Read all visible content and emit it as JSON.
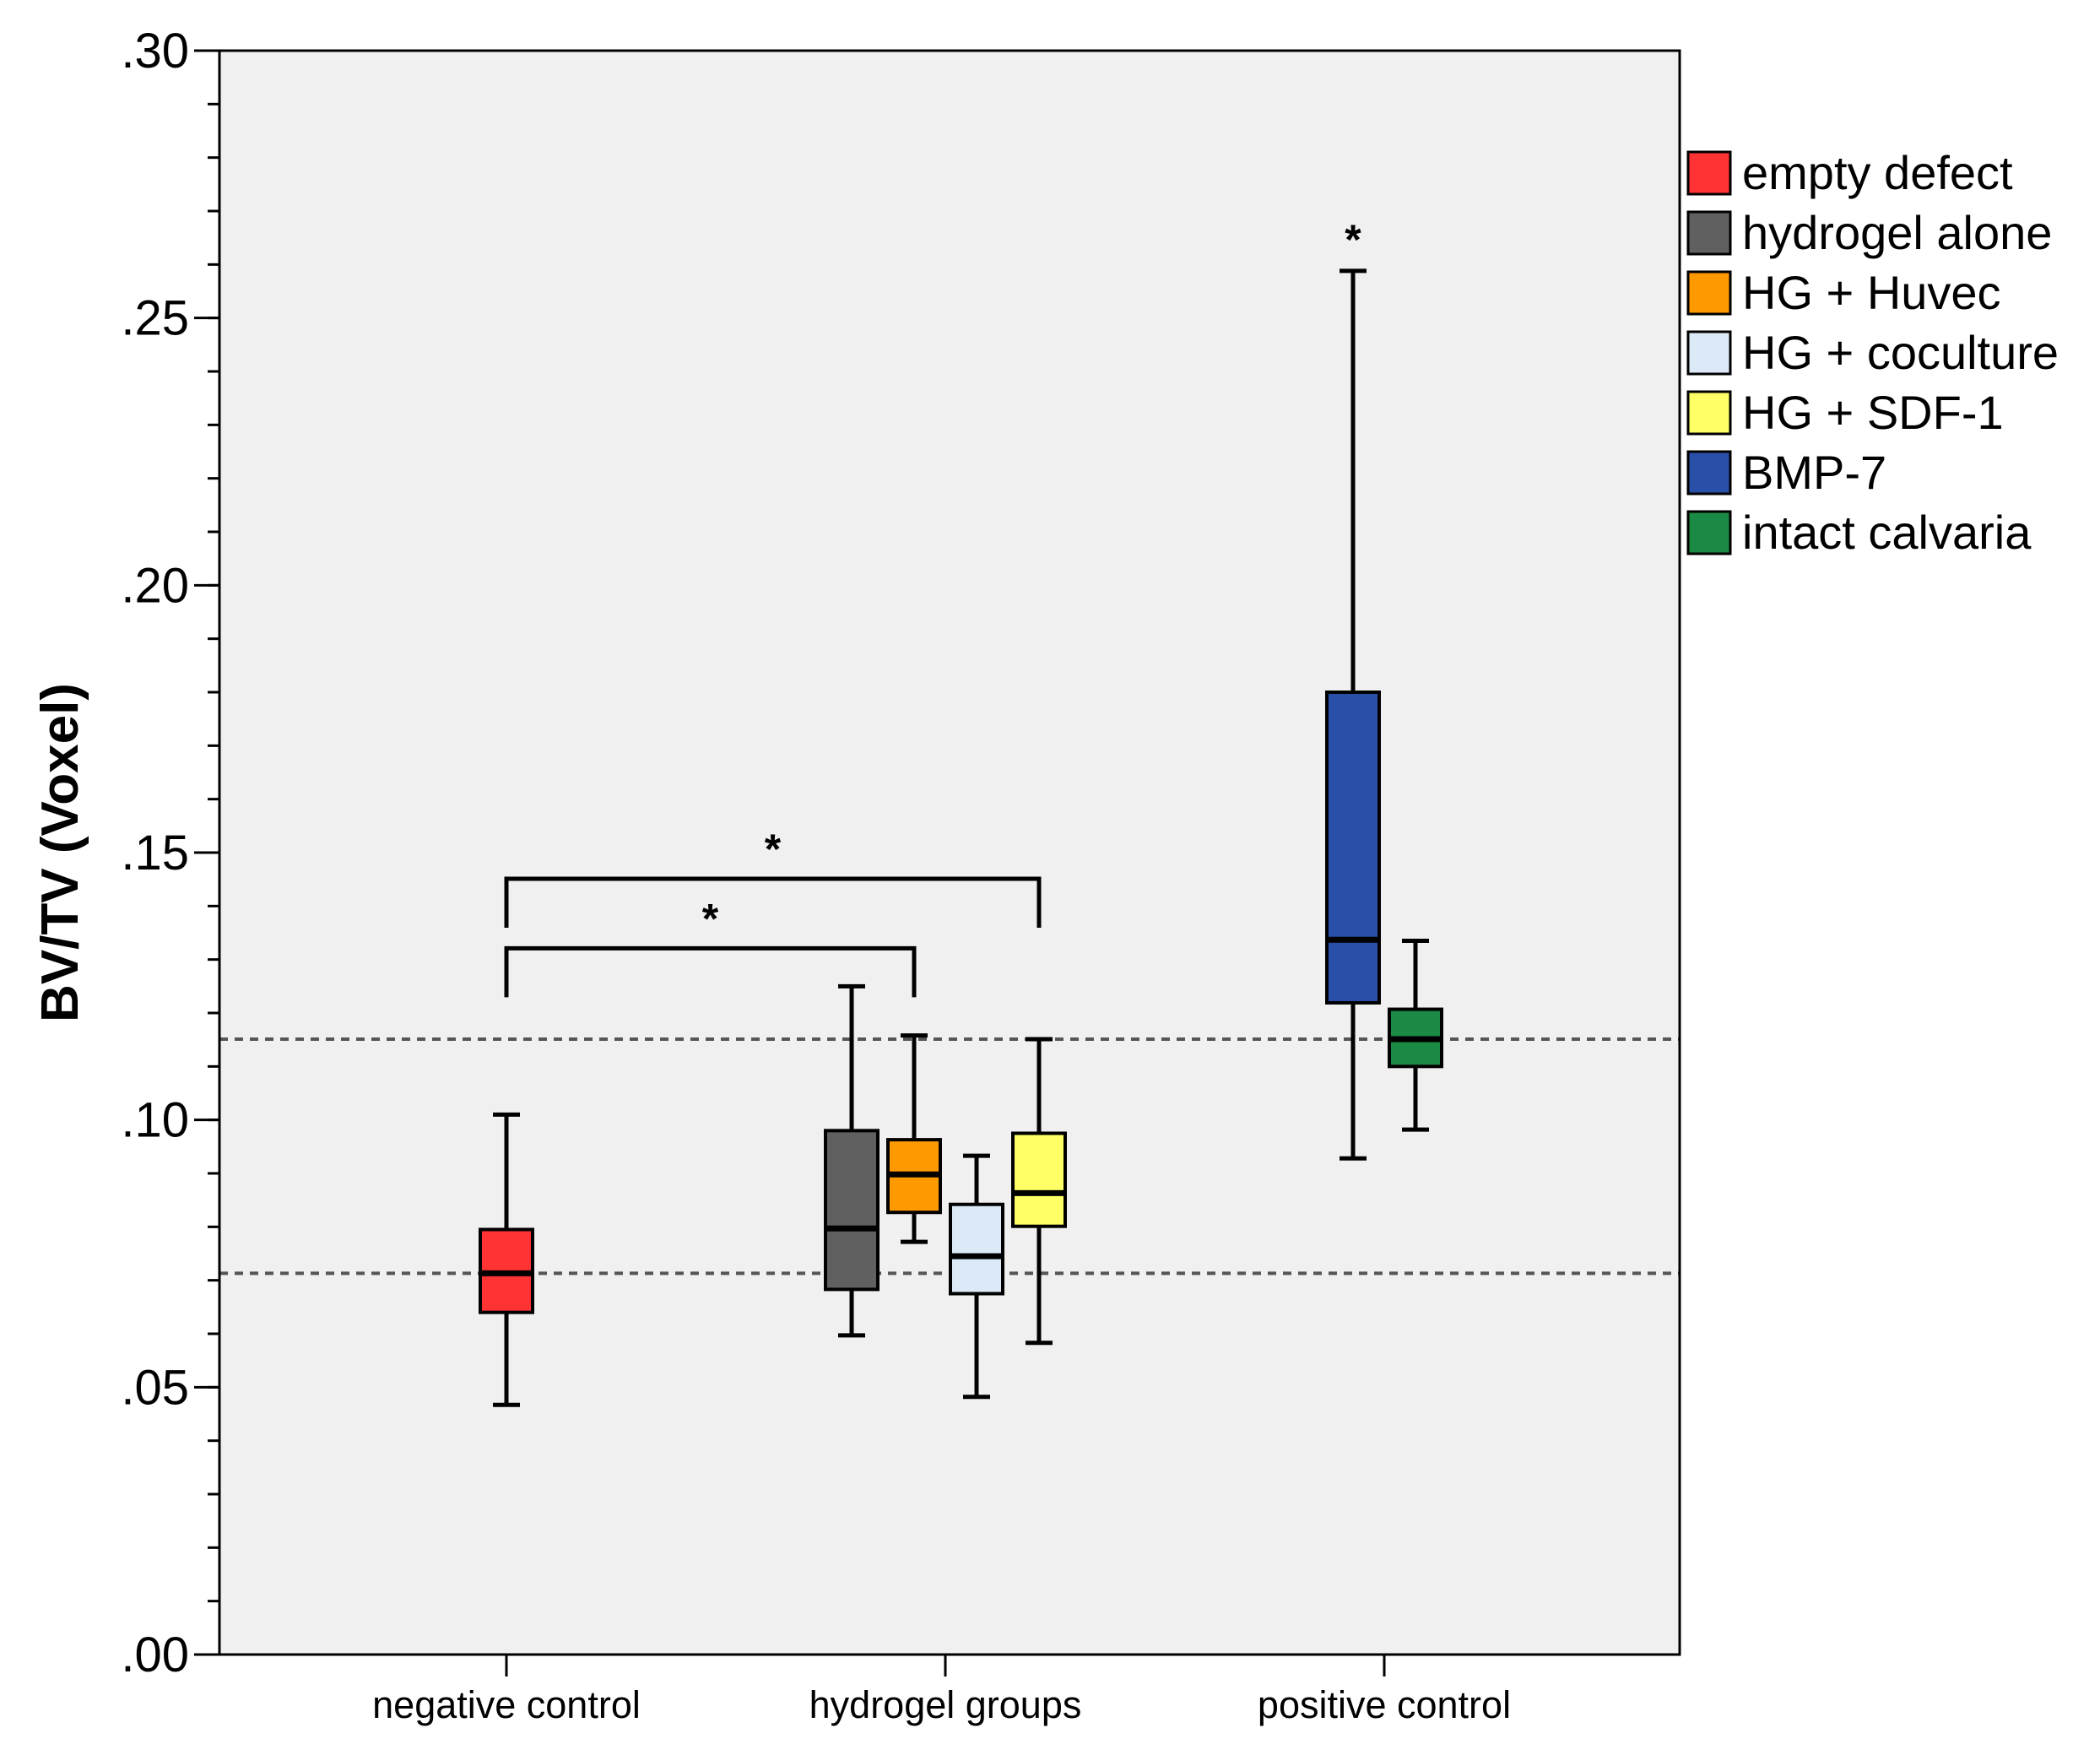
{
  "chart_data": {
    "type": "boxplot",
    "ylabel": "BV/TV (Voxel)",
    "ylim": [
      0,
      0.3
    ],
    "yticks": [
      {
        "value": 0.0,
        "label": ".00"
      },
      {
        "value": 0.05,
        "label": ".05"
      },
      {
        "value": 0.1,
        "label": ".10"
      },
      {
        "value": 0.15,
        "label": ".15"
      },
      {
        "value": 0.2,
        "label": ".20"
      },
      {
        "value": 0.25,
        "label": ".25"
      },
      {
        "value": 0.3,
        "label": ".30"
      }
    ],
    "categories": [
      "negative control",
      "hydrogel groups",
      "positive control"
    ],
    "background": "#f0f0f0",
    "reference_lines": [
      0.0713,
      0.1151
    ],
    "series": [
      {
        "name": "empty defect",
        "category": 0,
        "offset": 0,
        "color": "#ff3333",
        "min": 0.0467,
        "q1": 0.064,
        "median": 0.0713,
        "q3": 0.0795,
        "max": 0.101
      },
      {
        "name": "hydrogel alone",
        "category": 1,
        "offset": -1.5,
        "color": "#606060",
        "min": 0.0597,
        "q1": 0.0683,
        "median": 0.0797,
        "q3": 0.098,
        "max": 0.125
      },
      {
        "name": "HG + Huvec",
        "category": 1,
        "offset": -0.5,
        "color": "#ff9900",
        "min": 0.0772,
        "q1": 0.0827,
        "median": 0.0898,
        "q3": 0.0963,
        "max": 0.1158
      },
      {
        "name": "HG + coculture",
        "category": 1,
        "offset": 0.5,
        "color": "#dceaf7",
        "min": 0.0482,
        "q1": 0.0675,
        "median": 0.0745,
        "q3": 0.0842,
        "max": 0.0933
      },
      {
        "name": "HG + SDF-1",
        "category": 1,
        "offset": 1.5,
        "color": "#ffff66",
        "min": 0.0583,
        "q1": 0.0801,
        "median": 0.0863,
        "q3": 0.0975,
        "max": 0.1151
      },
      {
        "name": "BMP-7",
        "category": 2,
        "offset": -0.5,
        "color": "#2a4fa8",
        "min": 0.0928,
        "q1": 0.1219,
        "median": 0.1337,
        "q3": 0.18,
        "max": 0.2588
      },
      {
        "name": "intact calvaria",
        "category": 2,
        "offset": 0.5,
        "color": "#1a8a44",
        "min": 0.0982,
        "q1": 0.11,
        "median": 0.1151,
        "q3": 0.1207,
        "max": 0.1335
      }
    ],
    "annotations": [
      {
        "text": "*",
        "type": "outlier-star",
        "series": "BMP-7"
      },
      {
        "text": "*",
        "type": "bracket",
        "from": "empty defect",
        "to": "HG + SDF-1",
        "level": 0.1451
      },
      {
        "text": "*",
        "type": "bracket",
        "from": "empty defect",
        "to": "HG + Huvec",
        "level": 0.1321
      }
    ],
    "legend_position": "right"
  }
}
